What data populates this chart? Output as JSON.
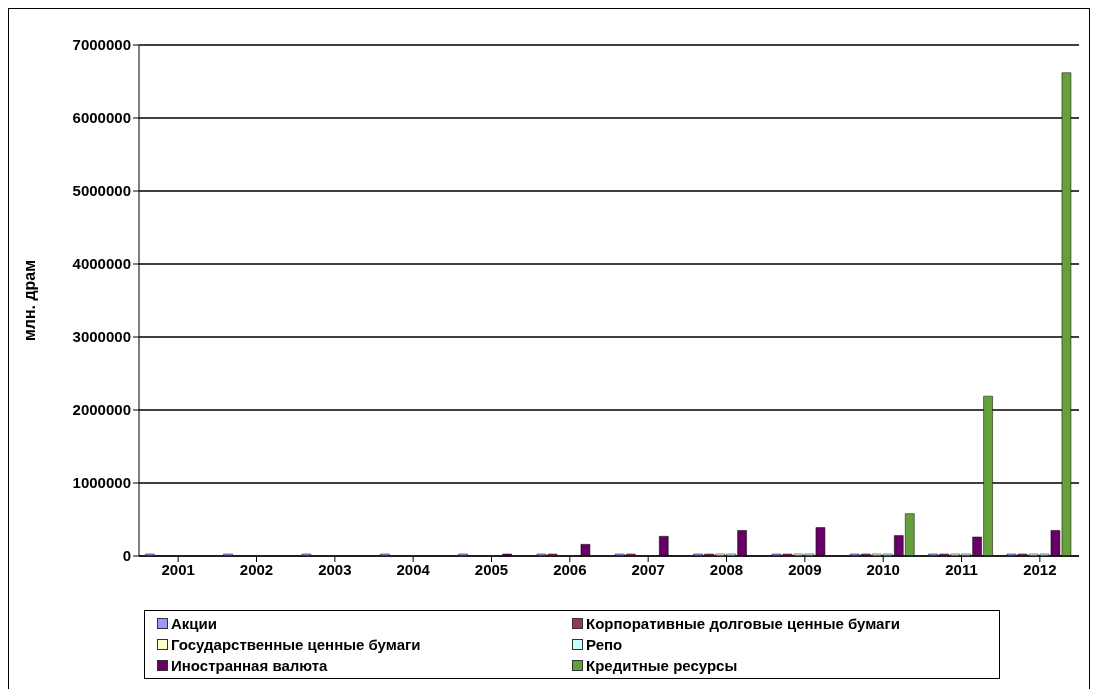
{
  "chart_data": {
    "type": "bar",
    "ylabel": "млн. драм",
    "categories": [
      "2001",
      "2002",
      "2003",
      "2004",
      "2005",
      "2006",
      "2007",
      "2008",
      "2009",
      "2010",
      "2011",
      "2012"
    ],
    "series": [
      {
        "name": "Акции",
        "color": "#9999ff",
        "values": [
          0,
          0,
          0,
          0,
          0,
          0,
          0,
          0,
          0,
          0,
          0,
          0
        ]
      },
      {
        "name": "Корпоративные долговые ценные бумаги",
        "color": "#993366",
        "values": [
          null,
          null,
          null,
          null,
          null,
          0,
          0,
          0,
          0,
          0,
          0,
          0
        ]
      },
      {
        "name": "Государственные ценные бумаги",
        "color": "#ffffcc",
        "values": [
          null,
          null,
          null,
          null,
          null,
          null,
          null,
          0,
          0,
          0,
          0,
          0
        ]
      },
      {
        "name": "Репо",
        "color": "#ccffff",
        "values": [
          null,
          null,
          null,
          null,
          null,
          null,
          null,
          0,
          0,
          0,
          0,
          0
        ]
      },
      {
        "name": "Иностранная валюта",
        "color": "#660066",
        "values": [
          null,
          null,
          null,
          null,
          10000,
          160000,
          270000,
          350000,
          390000,
          280000,
          260000,
          350000
        ]
      },
      {
        "name": "Кредитные ресурсы",
        "color": "#66a03c",
        "values": [
          null,
          null,
          null,
          null,
          null,
          null,
          null,
          null,
          null,
          580000,
          2190000,
          6620000
        ]
      }
    ],
    "ylim": [
      0,
      7000000
    ],
    "yticks": [
      0,
      1000000,
      2000000,
      3000000,
      4000000,
      5000000,
      6000000,
      7000000
    ],
    "grid": "y",
    "legend": "bottom"
  }
}
